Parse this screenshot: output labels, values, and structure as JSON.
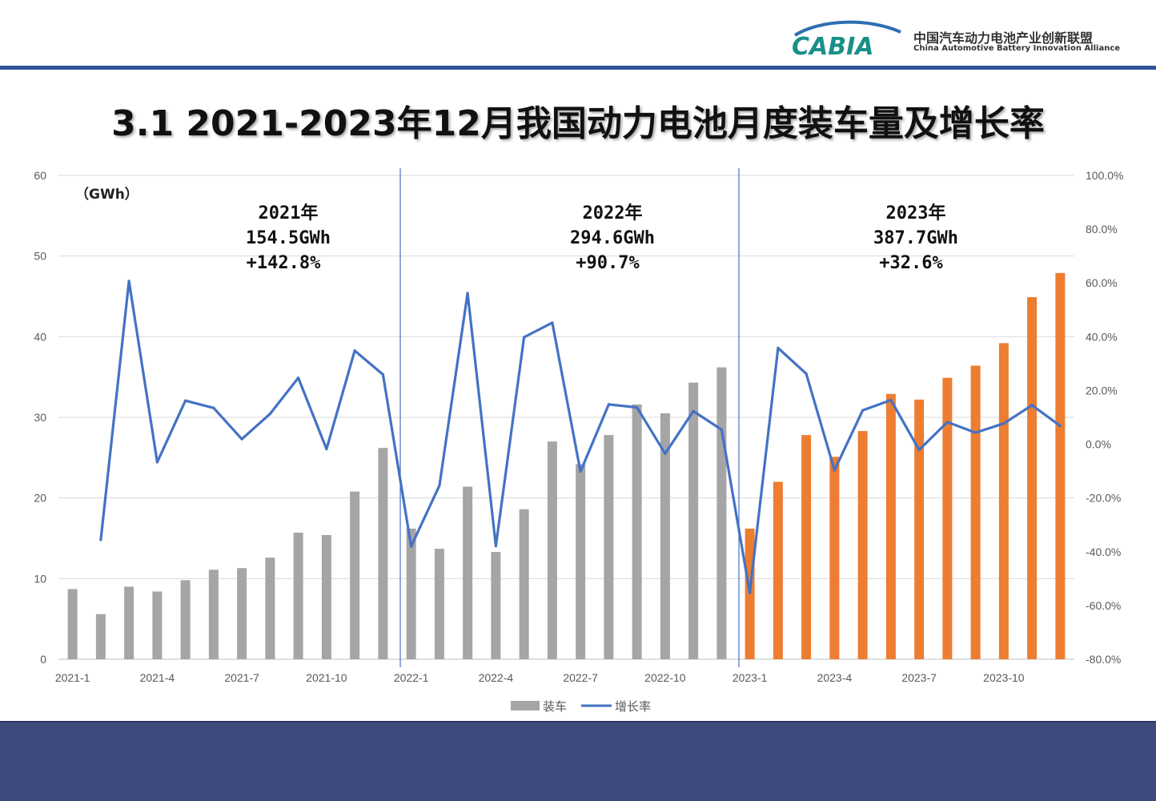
{
  "header": {
    "logo_text": "CABIA",
    "org_cn": "中国汽车动力电池产业创新联盟",
    "org_en": "China Automotive Battery Innovation Alliance"
  },
  "title": "3.1 2021-2023年12月我国动力电池月度装车量及增长率",
  "colors": {
    "gray_bar": "#a5a5a5",
    "orange_bar": "#ed7d31",
    "line": "#4472c4",
    "header_line": "#2f5597",
    "footer": "#3f4a7c"
  },
  "chart_data": {
    "type": "bar",
    "title": "3.1 2021-2023年12月我国动力电池月度装车量及增长率",
    "unit_label": "（GWh）",
    "categories": [
      "2021-1",
      "2021-2",
      "2021-3",
      "2021-4",
      "2021-5",
      "2021-6",
      "2021-7",
      "2021-8",
      "2021-9",
      "2021-10",
      "2021-11",
      "2021-12",
      "2022-1",
      "2022-2",
      "2022-3",
      "2022-4",
      "2022-5",
      "2022-6",
      "2022-7",
      "2022-8",
      "2022-9",
      "2022-10",
      "2022-11",
      "2022-12",
      "2023-1",
      "2023-2",
      "2023-3",
      "2023-4",
      "2023-5",
      "2023-6",
      "2023-7",
      "2023-8",
      "2023-9",
      "2023-10",
      "2023-11",
      "2023-12"
    ],
    "x_tick_labels": [
      "2021-1",
      "2021-4",
      "2021-7",
      "2021-10",
      "2022-1",
      "2022-4",
      "2022-7",
      "2022-10",
      "2023-1",
      "2023-4",
      "2023-7",
      "2023-10"
    ],
    "series": [
      {
        "name": "装车",
        "axis": "left",
        "values": [
          8.7,
          5.6,
          9.0,
          8.4,
          9.8,
          11.1,
          11.3,
          12.6,
          15.7,
          15.4,
          20.8,
          26.2,
          16.2,
          13.7,
          21.4,
          13.3,
          18.6,
          27.0,
          24.2,
          27.8,
          31.6,
          30.5,
          34.3,
          36.2,
          16.2,
          22.0,
          27.8,
          25.1,
          28.3,
          32.9,
          32.2,
          34.9,
          36.4,
          39.2,
          44.9,
          47.9
        ]
      },
      {
        "name": "增长率",
        "axis": "right",
        "values": [
          null,
          -35.6,
          60.7,
          -6.7,
          16.2,
          13.5,
          1.9,
          11.3,
          24.7,
          -1.8,
          34.8,
          25.9,
          -38.0,
          -15.4,
          56.2,
          -37.9,
          39.8,
          45.2,
          -10.2,
          14.8,
          13.7,
          -3.5,
          12.3,
          5.4,
          -55.3,
          35.8,
          26.2,
          -9.7,
          12.6,
          16.4,
          -2.1,
          8.2,
          4.3,
          7.7,
          14.5,
          6.8
        ]
      }
    ],
    "y_left": {
      "min": 0,
      "max": 60,
      "ticks": [
        "0",
        "10",
        "20",
        "30",
        "40",
        "50",
        "60"
      ]
    },
    "y_right": {
      "min": -80,
      "max": 100,
      "ticks": [
        "-80.0%",
        "-60.0%",
        "-40.0%",
        "-20.0%",
        "0.0%",
        "20.0%",
        "40.0%",
        "60.0%",
        "80.0%",
        "100.0%"
      ]
    },
    "annotations": [
      {
        "year": "2021年",
        "total": "154.5GWh",
        "growth": "+142.8%"
      },
      {
        "year": "2022年",
        "total": "294.6GWh",
        "growth": "+90.7%"
      },
      {
        "year": "2023年",
        "total": "387.7GWh",
        "growth": "+32.6%"
      }
    ],
    "legend": [
      {
        "label": "装车",
        "kind": "bar"
      },
      {
        "label": "增长率",
        "kind": "line"
      }
    ],
    "legend_position": "bottom",
    "grid": true
  }
}
